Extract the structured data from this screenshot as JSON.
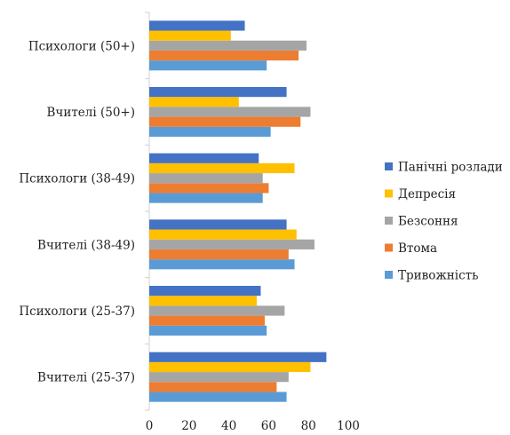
{
  "chart_data": {
    "type": "bar",
    "orientation": "horizontal",
    "categories": [
      "Вчителі (25-37)",
      "Психологи (25-37)",
      "Вчителі (38-49)",
      "Психологи (38-49)",
      "Вчителі (50+)",
      "Психологи (50+)"
    ],
    "series": [
      {
        "name": "Тривожність",
        "color": "#5b9bd5",
        "values": [
          69,
          59,
          73,
          57,
          61,
          59
        ]
      },
      {
        "name": "Втома",
        "color": "#ed7d31",
        "values": [
          64,
          58,
          70,
          60,
          76,
          75
        ]
      },
      {
        "name": "Безсоння",
        "color": "#a5a5a5",
        "values": [
          70,
          68,
          83,
          57,
          81,
          79
        ]
      },
      {
        "name": "Депресія",
        "color": "#ffc000",
        "values": [
          81,
          54,
          74,
          73,
          45,
          41
        ]
      },
      {
        "name": "Панічні розлади",
        "color": "#4472c4",
        "values": [
          89,
          56,
          69,
          55,
          69,
          48
        ]
      }
    ],
    "xlim": [
      0,
      100
    ],
    "xticks": [
      "0",
      "20",
      "40",
      "60",
      "80",
      "100"
    ],
    "grid": false,
    "legend_position": "right",
    "title": "",
    "xlabel": "",
    "ylabel": ""
  }
}
